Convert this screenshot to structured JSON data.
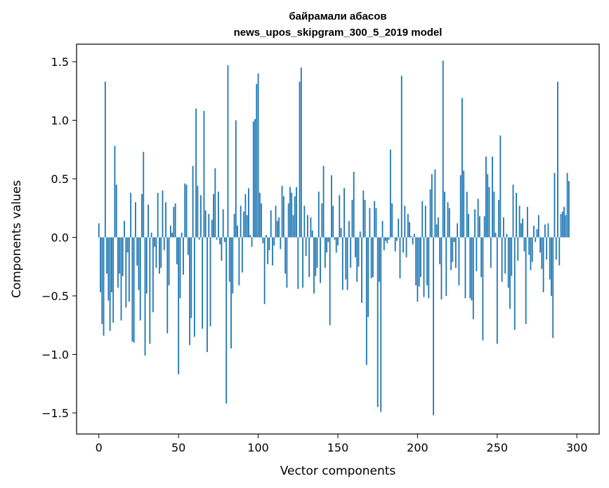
{
  "chart_data": {
    "type": "bar",
    "title_line1": "байрамали абасов",
    "title_line2": "news_upos_skipgram_300_5_2019 model",
    "xlabel": "Vector components",
    "ylabel": "Components values",
    "xlim": [
      -14,
      314
    ],
    "ylim": [
      -1.68,
      1.65
    ],
    "x_ticks": [
      0,
      50,
      100,
      150,
      200,
      250,
      300
    ],
    "x_tick_labels": [
      "0",
      "50",
      "100",
      "150",
      "200",
      "250",
      "300"
    ],
    "y_ticks": [
      1.5,
      1.0,
      0.5,
      0.0,
      -0.5,
      -1.0,
      -1.5
    ],
    "y_tick_labels": [
      "1.5",
      "1.0",
      "0.5",
      "0.0",
      "−0.5",
      "−1.0",
      "−1.5"
    ],
    "bar_color": "#1f77b4",
    "grid": false,
    "x": "0..299",
    "values": [
      0.12,
      -0.47,
      -0.74,
      -0.84,
      1.33,
      -0.31,
      -0.54,
      -0.8,
      -0.47,
      -0.73,
      0.78,
      0.45,
      -0.43,
      -0.31,
      -0.71,
      -0.33,
      0.14,
      -0.6,
      -0.13,
      -0.55,
      0.38,
      -0.89,
      -0.9,
      0.3,
      -0.24,
      -0.45,
      -0.71,
      0.37,
      0.73,
      -1.01,
      -0.48,
      0.28,
      -0.91,
      0.04,
      -0.64,
      -0.08,
      -0.26,
      0.38,
      -0.31,
      -0.26,
      0.4,
      -0.11,
      0.3,
      -0.82,
      -0.41,
      0.1,
      0.04,
      0.26,
      0.29,
      -0.23,
      -1.17,
      -0.52,
      0.04,
      -0.32,
      0.46,
      0.45,
      -0.15,
      -0.92,
      -0.69,
      0.61,
      -0.85,
      1.1,
      0.44,
      -0.02,
      0.36,
      -0.78,
      1.08,
      0.23,
      -0.98,
      0.2,
      -0.76,
      0.15,
      0.37,
      0.59,
      -0.02,
      0.39,
      -0.06,
      -0.2,
      0.24,
      -0.04,
      -1.42,
      1.47,
      -0.38,
      -0.95,
      -0.48,
      0.2,
      1.0,
      0.1,
      -0.41,
      0.27,
      -0.3,
      0.22,
      0.37,
      0.19,
      0.42,
      0.02,
      -0.08,
      0.99,
      1.01,
      1.31,
      1.4,
      0.38,
      0.29,
      -0.05,
      -0.57,
      0.02,
      -0.23,
      -0.11,
      0.23,
      -0.24,
      -0.07,
      0.27,
      0.14,
      0.17,
      -0.1,
      0.44,
      0.35,
      -0.31,
      -0.43,
      0.29,
      0.43,
      0.38,
      0.19,
      0.35,
      0.43,
      -0.44,
      1.33,
      1.45,
      -0.43,
      0.27,
      -0.16,
      0.19,
      -0.34,
      0.17,
      0.06,
      -0.48,
      -0.33,
      -0.26,
      0.39,
      -0.39,
      0.29,
      0.61,
      -0.26,
      -0.13,
      -0.04,
      -0.75,
      0.53,
      0.27,
      -0.02,
      -0.13,
      -0.07,
      0.36,
      0.08,
      -0.45,
      0.42,
      -0.36,
      -0.45,
      0.14,
      -0.26,
      0.32,
      0.56,
      -0.17,
      -0.38,
      -0.25,
      0.05,
      -0.56,
      0.4,
      0.32,
      -1.09,
      -0.68,
      0.25,
      -0.35,
      -0.34,
      0.31,
      0.25,
      -1.45,
      -0.38,
      -1.49,
      0.14,
      -0.11,
      -0.03,
      -0.05,
      -0.02,
      0.75,
      0.29,
      0.0,
      -0.12,
      -0.03,
      0.16,
      -0.35,
      1.38,
      -0.13,
      0.27,
      -0.17,
      0.2,
      0.13,
      0.01,
      -0.06,
      0.03,
      -0.41,
      -0.55,
      -0.42,
      -0.34,
      0.31,
      -0.51,
      0.27,
      -0.41,
      -0.52,
      0.41,
      0.54,
      -1.52,
      0.58,
      0.11,
      0.17,
      -0.23,
      -0.53,
      1.51,
      0.39,
      -0.5,
      0.3,
      0.25,
      -0.28,
      -0.21,
      -0.04,
      -0.26,
      0.12,
      -0.41,
      0.53,
      1.19,
      0.57,
      -0.52,
      0.39,
      0.2,
      -0.52,
      -0.54,
      -0.7,
      0.24,
      -0.29,
      0.33,
      0.18,
      -0.34,
      -0.88,
      0.18,
      0.69,
      0.54,
      0.43,
      -0.26,
      0.69,
      0.39,
      0.04,
      -0.91,
      0.32,
      0.87,
      -0.38,
      0.17,
      -0.31,
      0.03,
      -0.43,
      -0.61,
      -0.33,
      0.45,
      -0.79,
      0.38,
      -0.2,
      0.27,
      0.12,
      0.16,
      -0.12,
      -0.74,
      0.26,
      -0.15,
      -0.28,
      -0.21,
      0.1,
      -0.04,
      0.07,
      0.19,
      -0.13,
      -0.27,
      -0.47,
      0.11,
      -0.19,
      0.12,
      -0.36,
      -0.5,
      -0.86,
      0.55,
      -0.19,
      1.33,
      -0.24,
      0.2,
      0.22,
      0.26,
      0.19,
      0.55,
      0.48
    ]
  }
}
